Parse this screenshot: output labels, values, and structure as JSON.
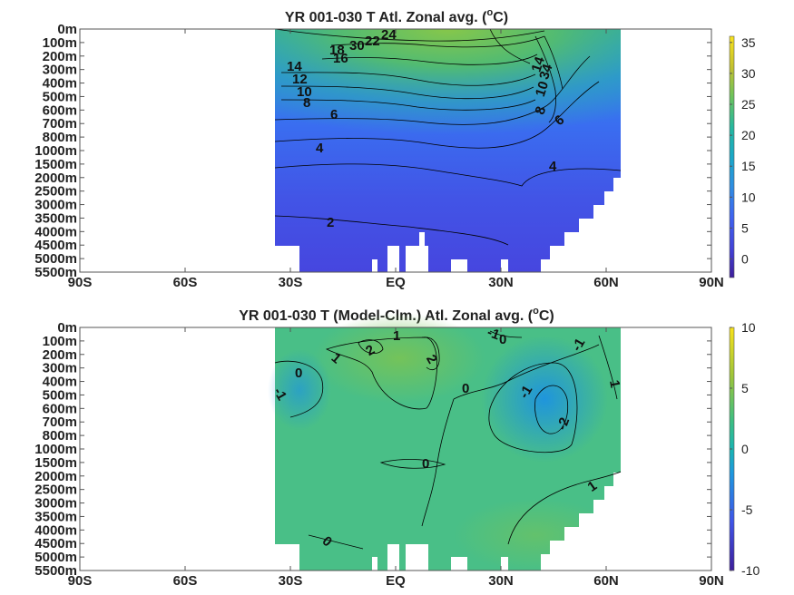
{
  "chart_data": [
    {
      "type": "heatmap",
      "title_prefix": "YR 001-030 T Atl. Zonal avg. (",
      "title_sup": "o",
      "title_suffix": "C)",
      "x_ticks": [
        "90S",
        "60S",
        "30S",
        "EQ",
        "30N",
        "60N",
        "90N"
      ],
      "x_range": [
        -90,
        90
      ],
      "data_x_range": [
        -34,
        64
      ],
      "y_ticks": [
        "0m",
        "100m",
        "200m",
        "300m",
        "400m",
        "500m",
        "600m",
        "700m",
        "800m",
        "1000m",
        "1500m",
        "2000m",
        "2500m",
        "3000m",
        "3500m",
        "4000m",
        "4500m",
        "5000m",
        "5500m"
      ],
      "colorbar_ticks": [
        "35",
        "30",
        "25",
        "20",
        "15",
        "10",
        "5",
        "0"
      ],
      "colorbar_range": [
        -3,
        36
      ],
      "contour_labels": [
        "30",
        "24",
        "22",
        "18",
        "16",
        "14",
        "12",
        "10",
        "8",
        "6",
        "4",
        "2",
        "14",
        "34",
        "10",
        "8",
        "6",
        "4"
      ]
    },
    {
      "type": "heatmap",
      "title_prefix": "YR 001-030 T (Model-Clm.) Atl. Zonal avg. (",
      "title_sup": "o",
      "title_suffix": "C)",
      "x_ticks": [
        "90S",
        "60S",
        "30S",
        "EQ",
        "30N",
        "60N",
        "90N"
      ],
      "x_range": [
        -90,
        90
      ],
      "data_x_range": [
        -34,
        64
      ],
      "y_ticks": [
        "0m",
        "100m",
        "200m",
        "300m",
        "400m",
        "500m",
        "600m",
        "700m",
        "800m",
        "1000m",
        "1500m",
        "2000m",
        "2500m",
        "3000m",
        "3500m",
        "4000m",
        "4500m",
        "5000m",
        "5500m"
      ],
      "colorbar_ticks": [
        "10",
        "5",
        "0",
        "-5",
        "-10"
      ],
      "colorbar_range": [
        -10,
        10
      ],
      "contour_labels": [
        "1",
        "-1",
        "0",
        "0",
        "-1",
        "1",
        "2",
        "2",
        "0",
        "-1",
        "-1",
        "-2",
        "1",
        "0",
        "1",
        "0"
      ]
    }
  ]
}
